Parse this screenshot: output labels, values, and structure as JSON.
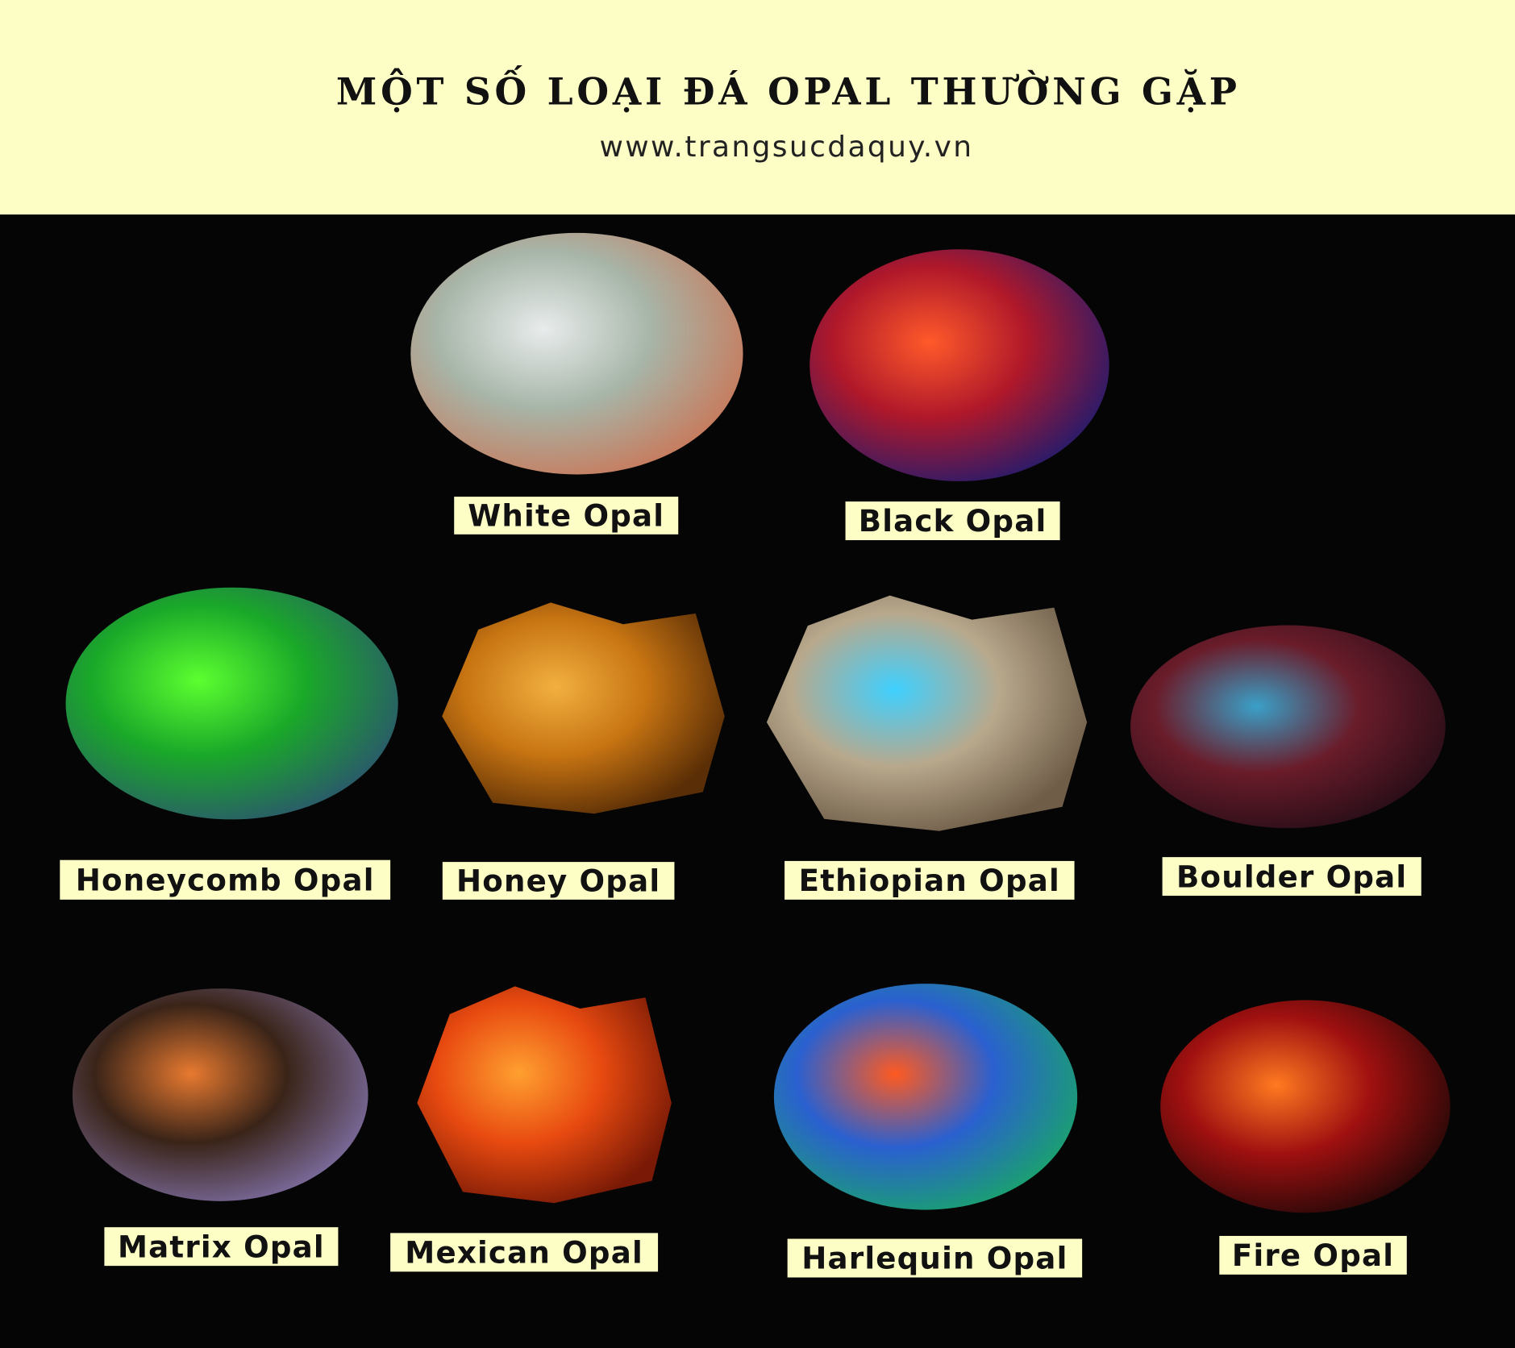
{
  "header": {
    "title": "MỘT SỐ LOẠI ĐÁ OPAL THƯỜNG GẶP",
    "subtitle": "www.trangsucdaquy.vn"
  },
  "gems": [
    {
      "label": "White Opal"
    },
    {
      "label": "Black Opal"
    },
    {
      "label": "Honeycomb Opal"
    },
    {
      "label": "Honey Opal"
    },
    {
      "label": "Ethiopian Opal"
    },
    {
      "label": "Boulder Opal"
    },
    {
      "label": "Matrix Opal"
    },
    {
      "label": "Mexican Opal"
    },
    {
      "label": "Harlequin Opal"
    },
    {
      "label": "Fire Opal"
    }
  ]
}
